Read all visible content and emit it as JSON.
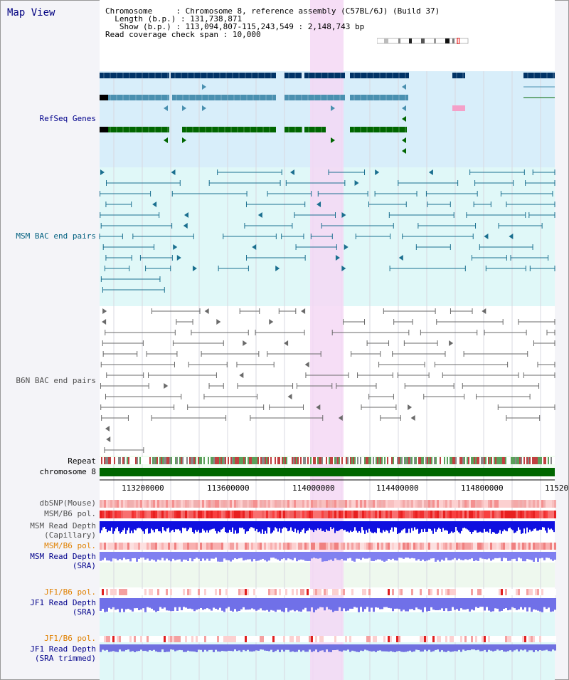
{
  "title": "Map View",
  "header": {
    "chromosome_key": "Chromosome",
    "chromosome_val": "Chromosome 8, reference assembly (C57BL/6J) (Build 37)",
    "length_key": "Length (b.p.)",
    "length_val": "131,738,871",
    "show_key": "Show (b.p.)",
    "show_val": "113,094,807-115,243,549 : 2,148,743 bp",
    "read_key": "Read coverage check span",
    "read_val": "10,000"
  },
  "tracks": {
    "refseq": "RefSeq Genes",
    "msm_bac": "MSM BAC end pairs",
    "b6n_bac": "B6N BAC end pairs",
    "repeat": "Repeat",
    "chrom": "chromosome 8",
    "dbsnp": "dbSNP(Mouse)",
    "msm_b6_pol": "MSM/B6 pol.",
    "msm_rd_cap_1": "MSM Read Depth",
    "msm_rd_cap_2": "(Capillary)",
    "msm_b6_pol2": "MSM/B6 pol.",
    "msm_rd_sra_1": "MSM Read Depth",
    "msm_rd_sra_2": "(SRA)",
    "jf1_pol": "JF1/B6 pol.",
    "jf1_rd_1": "JF1 Read Depth",
    "jf1_rd_2": "(SRA)",
    "jf1_pol2": "JF1/B6 pol.",
    "jf1_rd_tr_1": "JF1 Read Depth",
    "jf1_rd_tr_2": "(SRA trimmed)"
  },
  "axis": {
    "ticks": [
      "113200000",
      "113600000",
      "114000000",
      "114400000",
      "114800000",
      "11520"
    ]
  },
  "colors": {
    "refseq_bg": "#d8eefa",
    "msm_bg": "#e0f8f8",
    "highlight": "#f4d8f4",
    "gene_dark": "#003366",
    "gene_mid": "#4a90b0",
    "gene_green": "#006600",
    "chrom": "#006600"
  }
}
